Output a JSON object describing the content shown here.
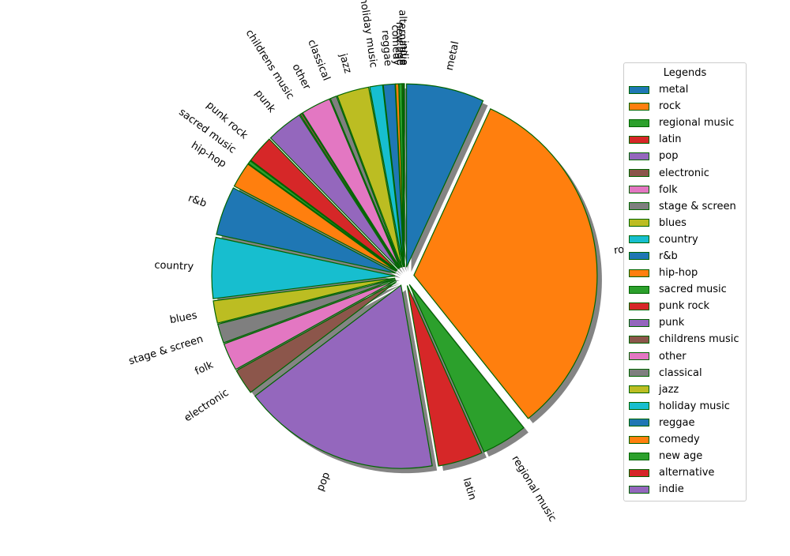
{
  "chart_data": {
    "type": "pie",
    "categories": [
      "metal",
      "rock",
      "regional music",
      "latin",
      "pop",
      "electronic",
      "folk",
      "stage & screen",
      "blues",
      "country",
      "r&b",
      "hip-hop",
      "sacred music",
      "punk rock",
      "punk",
      "childrens music",
      "other",
      "classical",
      "jazz",
      "holiday music",
      "reggae",
      "comedy",
      "new age",
      "alternative",
      "indie"
    ],
    "values": [
      7.3,
      34.5,
      4.3,
      4.2,
      18.5,
      2.4,
      2.6,
      1.8,
      2.1,
      5.7,
      4.6,
      2.4,
      0.3,
      2.6,
      3.4,
      0.2,
      2.8,
      0.6,
      3.0,
      1.2,
      1.1,
      0.3,
      0.3,
      0.1,
      0.1
    ],
    "colors": [
      "#1f77b4",
      "#ff7f0e",
      "#2ca02c",
      "#d62728",
      "#9467bd",
      "#8c564b",
      "#e377c2",
      "#7f7f7f",
      "#bcbd22",
      "#17becf",
      "#1f77b4",
      "#ff7f0e",
      "#2ca02c",
      "#d62728",
      "#9467bd",
      "#8c564b",
      "#e377c2",
      "#7f7f7f",
      "#bcbd22",
      "#17becf",
      "#1f77b4",
      "#ff7f0e",
      "#2ca02c",
      "#d62728",
      "#9467bd"
    ],
    "edge_color": "#006400",
    "shadow": true,
    "exploded": true,
    "legend_title": "Legends",
    "legend_position": "right"
  }
}
